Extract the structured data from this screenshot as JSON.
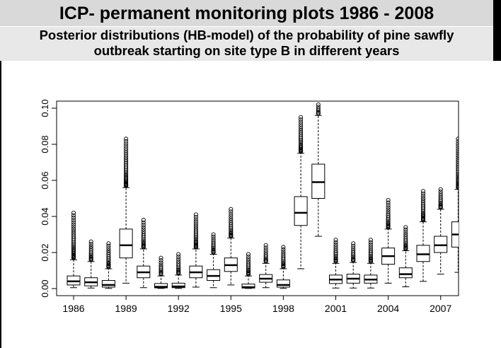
{
  "header": {
    "title": "ICP- permanent monitoring plots 1986 - 2008",
    "subtitle_line1": "Posterior distributions (HB-model) of the probability of pine sawfly",
    "subtitle_line2": "outbreak starting on site type B in  different years"
  },
  "colors": {
    "header_bg": "#d9d9d9",
    "box_fill": "#ffffff",
    "stroke": "#000000"
  },
  "chart_data": {
    "type": "boxplot",
    "title": "",
    "xlabel": "",
    "ylabel": "",
    "ylim": [
      0,
      0.1
    ],
    "yticks": [
      "0.00",
      "0.02",
      "0.04",
      "0.06",
      "0.08",
      "0.10"
    ],
    "xtick_labels": [
      "1986",
      "1989",
      "1992",
      "1995",
      "1998",
      "2001",
      "2004",
      "2007"
    ],
    "categories": [
      "1986",
      "1987",
      "1988",
      "1989",
      "1990",
      "1991",
      "1992",
      "1993",
      "1994",
      "1995",
      "1996",
      "1997",
      "1998",
      "1999",
      "2000",
      "2001",
      "2002",
      "2003",
      "2004",
      "2005",
      "2006",
      "2007",
      "2008"
    ],
    "boxes": [
      {
        "year": "1986",
        "min": 0.0005,
        "q1": 0.002,
        "median": 0.004,
        "q3": 0.007,
        "whisker_high": 0.016,
        "outliers_from": 0.017,
        "outliers_to": 0.042
      },
      {
        "year": "1987",
        "min": 0.0003,
        "q1": 0.0015,
        "median": 0.0035,
        "q3": 0.006,
        "whisker_high": 0.015,
        "outliers_from": 0.016,
        "outliers_to": 0.026
      },
      {
        "year": "1988",
        "min": 0.0001,
        "q1": 0.0008,
        "median": 0.002,
        "q3": 0.0045,
        "whisker_high": 0.011,
        "outliers_from": 0.012,
        "outliers_to": 0.025
      },
      {
        "year": "1989",
        "min": 0.003,
        "q1": 0.017,
        "median": 0.024,
        "q3": 0.033,
        "whisker_high": 0.056,
        "outliers_from": 0.057,
        "outliers_to": 0.083
      },
      {
        "year": "1990",
        "min": 0.0005,
        "q1": 0.006,
        "median": 0.009,
        "q3": 0.0125,
        "whisker_high": 0.022,
        "outliers_from": 0.023,
        "outliers_to": 0.038
      },
      {
        "year": "1991",
        "min": 0.0001,
        "q1": 0.0004,
        "median": 0.001,
        "q3": 0.0028,
        "whisker_high": 0.007,
        "outliers_from": 0.008,
        "outliers_to": 0.017
      },
      {
        "year": "1992",
        "min": 0.0001,
        "q1": 0.0005,
        "median": 0.0012,
        "q3": 0.003,
        "whisker_high": 0.0075,
        "outliers_from": 0.0085,
        "outliers_to": 0.019
      },
      {
        "year": "1993",
        "min": 0.0008,
        "q1": 0.006,
        "median": 0.009,
        "q3": 0.0125,
        "whisker_high": 0.022,
        "outliers_from": 0.023,
        "outliers_to": 0.041
      },
      {
        "year": "1994",
        "min": 0.0005,
        "q1": 0.0045,
        "median": 0.007,
        "q3": 0.0105,
        "whisker_high": 0.019,
        "outliers_from": 0.02,
        "outliers_to": 0.03
      },
      {
        "year": "1995",
        "min": 0.002,
        "q1": 0.0095,
        "median": 0.013,
        "q3": 0.017,
        "whisker_high": 0.028,
        "outliers_from": 0.029,
        "outliers_to": 0.044
      },
      {
        "year": "1996",
        "min": 0.0001,
        "q1": 0.0003,
        "median": 0.0008,
        "q3": 0.0025,
        "whisker_high": 0.007,
        "outliers_from": 0.008,
        "outliers_to": 0.019
      },
      {
        "year": "1997",
        "min": 0.0005,
        "q1": 0.0035,
        "median": 0.0055,
        "q3": 0.0078,
        "whisker_high": 0.014,
        "outliers_from": 0.015,
        "outliers_to": 0.024
      },
      {
        "year": "1998",
        "min": 0.0001,
        "q1": 0.0008,
        "median": 0.002,
        "q3": 0.0048,
        "whisker_high": 0.011,
        "outliers_from": 0.012,
        "outliers_to": 0.023
      },
      {
        "year": "1999",
        "min": 0.011,
        "q1": 0.035,
        "median": 0.042,
        "q3": 0.051,
        "whisker_high": 0.075,
        "outliers_from": 0.076,
        "outliers_to": 0.095
      },
      {
        "year": "2000",
        "min": 0.029,
        "q1": 0.05,
        "median": 0.059,
        "q3": 0.069,
        "whisker_high": 0.096,
        "outliers_from": 0.097,
        "outliers_to": 0.102
      },
      {
        "year": "2001",
        "min": 0.0003,
        "q1": 0.0028,
        "median": 0.005,
        "q3": 0.0075,
        "whisker_high": 0.014,
        "outliers_from": 0.015,
        "outliers_to": 0.027
      },
      {
        "year": "2002",
        "min": 0.0003,
        "q1": 0.003,
        "median": 0.0055,
        "q3": 0.008,
        "whisker_high": 0.0145,
        "outliers_from": 0.0155,
        "outliers_to": 0.025
      },
      {
        "year": "2003",
        "min": 0.0003,
        "q1": 0.003,
        "median": 0.005,
        "q3": 0.0075,
        "whisker_high": 0.014,
        "outliers_from": 0.015,
        "outliers_to": 0.027
      },
      {
        "year": "2004",
        "min": 0.003,
        "q1": 0.0135,
        "median": 0.018,
        "q3": 0.0225,
        "whisker_high": 0.033,
        "outliers_from": 0.034,
        "outliers_to": 0.049
      },
      {
        "year": "2005",
        "min": 0.001,
        "q1": 0.006,
        "median": 0.008,
        "q3": 0.0115,
        "whisker_high": 0.021,
        "outliers_from": 0.022,
        "outliers_to": 0.034
      },
      {
        "year": "2006",
        "min": 0.004,
        "q1": 0.015,
        "median": 0.019,
        "q3": 0.024,
        "whisker_high": 0.037,
        "outliers_from": 0.038,
        "outliers_to": 0.054
      },
      {
        "year": "2007",
        "min": 0.008,
        "q1": 0.02,
        "median": 0.024,
        "q3": 0.029,
        "whisker_high": 0.044,
        "outliers_from": 0.045,
        "outliers_to": 0.055
      },
      {
        "year": "2008",
        "min": 0.009,
        "q1": 0.023,
        "median": 0.03,
        "q3": 0.037,
        "whisker_high": 0.055,
        "outliers_from": 0.056,
        "outliers_to": 0.083
      }
    ],
    "grid": false,
    "legend": "none"
  }
}
